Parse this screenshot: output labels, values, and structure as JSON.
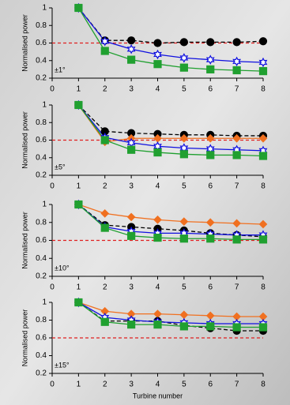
{
  "chart_data": [
    {
      "type": "line",
      "ylabel": "Normalised power",
      "annotation": "±1°",
      "x": [
        1,
        2,
        3,
        4,
        5,
        6,
        7,
        8
      ],
      "xlim": [
        0,
        8
      ],
      "xticks": [
        0,
        1,
        2,
        3,
        4,
        5,
        6,
        7,
        8
      ],
      "ylim": [
        0.2,
        1
      ],
      "yticks": [
        0.2,
        0.4,
        0.6,
        0.8,
        1
      ],
      "reference": 0.6,
      "reference_color": "#e02020",
      "series": [
        {
          "color": "#000000",
          "marker": "circle",
          "dashed": true,
          "values": [
            1,
            0.63,
            0.63,
            0.6,
            0.61,
            0.61,
            0.61,
            0.62
          ]
        },
        {
          "color": "#1010e0",
          "marker": "star",
          "dashed": false,
          "values": [
            1,
            0.62,
            0.53,
            0.47,
            0.43,
            0.41,
            0.39,
            0.38
          ]
        },
        {
          "color": "#20a030",
          "marker": "square",
          "dashed": false,
          "values": [
            1,
            0.51,
            0.41,
            0.36,
            0.32,
            0.3,
            0.29,
            0.28
          ]
        }
      ]
    },
    {
      "type": "line",
      "ylabel": "Normalised power",
      "annotation": "±5°",
      "x": [
        1,
        2,
        3,
        4,
        5,
        6,
        7,
        8
      ],
      "xlim": [
        0,
        8
      ],
      "xticks": [
        0,
        1,
        2,
        3,
        4,
        5,
        6,
        7,
        8
      ],
      "ylim": [
        0.2,
        1
      ],
      "yticks": [
        0.2,
        0.4,
        0.6,
        0.8,
        1
      ],
      "reference": 0.6,
      "reference_color": "#e02020",
      "series": [
        {
          "color": "#000000",
          "marker": "circle",
          "dashed": true,
          "values": [
            1,
            0.7,
            0.68,
            0.67,
            0.66,
            0.66,
            0.65,
            0.65
          ]
        },
        {
          "color": "#f07020",
          "marker": "diamond",
          "dashed": false,
          "values": [
            1,
            0.58,
            0.62,
            0.62,
            0.62,
            0.62,
            0.62,
            0.62
          ]
        },
        {
          "color": "#1010e0",
          "marker": "star",
          "dashed": false,
          "values": [
            1,
            0.63,
            0.57,
            0.53,
            0.51,
            0.5,
            0.49,
            0.48
          ]
        },
        {
          "color": "#20a030",
          "marker": "square",
          "dashed": false,
          "values": [
            1,
            0.6,
            0.49,
            0.46,
            0.44,
            0.43,
            0.43,
            0.42
          ]
        }
      ]
    },
    {
      "type": "line",
      "ylabel": "Normalised power",
      "annotation": "±10°",
      "x": [
        1,
        2,
        3,
        4,
        5,
        6,
        7,
        8
      ],
      "xlim": [
        0,
        8
      ],
      "xticks": [
        0,
        1,
        2,
        3,
        4,
        5,
        6,
        7,
        8
      ],
      "ylim": [
        0.2,
        1
      ],
      "yticks": [
        0.2,
        0.4,
        0.6,
        0.8,
        1
      ],
      "reference": 0.6,
      "reference_color": "#e02020",
      "series": [
        {
          "color": "#f07020",
          "marker": "diamond",
          "dashed": false,
          "values": [
            1,
            0.9,
            0.86,
            0.83,
            0.81,
            0.8,
            0.79,
            0.78
          ]
        },
        {
          "color": "#000000",
          "marker": "circle",
          "dashed": true,
          "values": [
            1,
            0.77,
            0.75,
            0.73,
            0.71,
            0.68,
            0.66,
            0.64
          ]
        },
        {
          "color": "#1010e0",
          "marker": "star",
          "dashed": false,
          "values": [
            1,
            0.75,
            0.7,
            0.68,
            0.68,
            0.67,
            0.66,
            0.66
          ]
        },
        {
          "color": "#20a030",
          "marker": "square",
          "dashed": false,
          "values": [
            1,
            0.74,
            0.65,
            0.63,
            0.62,
            0.62,
            0.61,
            0.61
          ]
        }
      ]
    },
    {
      "type": "line",
      "ylabel": "Normalised power",
      "annotation": "±15°",
      "xlabel": "Turbine number",
      "x": [
        1,
        2,
        3,
        4,
        5,
        6,
        7,
        8
      ],
      "xlim": [
        0,
        8
      ],
      "xticks": [
        0,
        1,
        2,
        3,
        4,
        5,
        6,
        7,
        8
      ],
      "ylim": [
        0.2,
        1
      ],
      "yticks": [
        0.2,
        0.4,
        0.6,
        0.8,
        1
      ],
      "reference": 0.6,
      "reference_color": "#e02020",
      "series": [
        {
          "color": "#f07020",
          "marker": "diamond",
          "dashed": false,
          "values": [
            1,
            0.9,
            0.87,
            0.87,
            0.86,
            0.85,
            0.84,
            0.84
          ]
        },
        {
          "color": "#000000",
          "marker": "circle",
          "dashed": true,
          "values": [
            1,
            0.79,
            0.79,
            0.79,
            0.74,
            0.71,
            0.68,
            0.68
          ]
        },
        {
          "color": "#1010e0",
          "marker": "star",
          "dashed": false,
          "values": [
            1,
            0.83,
            0.8,
            0.78,
            0.77,
            0.76,
            0.76,
            0.76
          ]
        },
        {
          "color": "#20a030",
          "marker": "square",
          "dashed": false,
          "values": [
            1,
            0.78,
            0.75,
            0.75,
            0.73,
            0.73,
            0.72,
            0.72
          ]
        }
      ]
    }
  ]
}
